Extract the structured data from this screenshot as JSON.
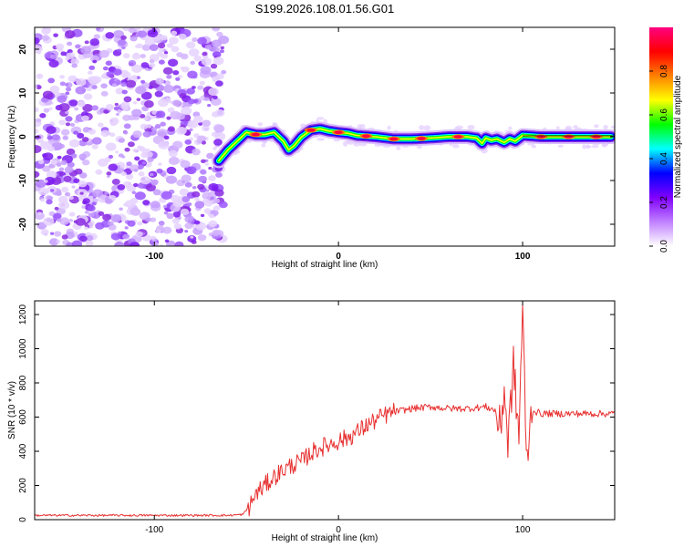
{
  "title": "S199.2026.108.01.56.G01",
  "chart_data": [
    {
      "type": "heatmap",
      "xlabel": "Height of straight line (km)",
      "ylabel": "Frequency (Hz)",
      "xlim": [
        -165,
        150
      ],
      "ylim": [
        -25,
        25
      ],
      "xticks": [
        -100,
        0,
        100
      ],
      "yticks": [
        -20,
        -10,
        0,
        10,
        20
      ],
      "colorbar": {
        "label": "Normalized spectral amplitude",
        "range": [
          0,
          1
        ],
        "ticks": [
          0.0,
          0.2,
          0.4,
          0.6,
          0.8
        ],
        "colormap": [
          "#ffffff",
          "#c080ff",
          "#8000ff",
          "#0000ff",
          "#00ffff",
          "#00ff00",
          "#ffff00",
          "#ff8000",
          "#ff0000",
          "#ff0080"
        ]
      },
      "noise_region_x": [
        -165,
        -62
      ],
      "ridge": {
        "x": [
          -65,
          -60,
          -55,
          -50,
          -45,
          -40,
          -35,
          -30,
          -27,
          -24,
          -20,
          -15,
          -10,
          -5,
          0,
          5,
          10,
          20,
          30,
          40,
          50,
          60,
          70,
          75,
          78,
          80,
          83,
          86,
          90,
          93,
          96,
          100,
          110,
          120,
          130,
          140,
          148
        ],
        "freq": [
          -5.5,
          -3,
          -1,
          1,
          0.5,
          0.5,
          1,
          -1,
          -3,
          -2,
          0,
          1.5,
          1.8,
          1.3,
          1.0,
          0.8,
          0.3,
          0,
          -0.5,
          -0.5,
          -0.3,
          0,
          0,
          -0.3,
          -1.5,
          -0.3,
          -0.8,
          -0.5,
          -1.3,
          -0.5,
          -1,
          0.3,
          0,
          0,
          0,
          0,
          0
        ]
      },
      "hot_spots_x": [
        -45,
        -15,
        0,
        15,
        30,
        45,
        65,
        110,
        125,
        140
      ]
    },
    {
      "type": "line",
      "xlabel": "Height of straight line (km)",
      "ylabel": "SNR (10 * v/v)",
      "xlim": [
        -165,
        150
      ],
      "ylim": [
        0,
        1280
      ],
      "xticks": [
        -100,
        0,
        100
      ],
      "yticks": [
        0,
        200,
        400,
        600,
        800,
        1000,
        1200
      ],
      "color": "#e83030",
      "series": [
        {
          "name": "SNR",
          "x": [
            -165,
            -140,
            -120,
            -100,
            -80,
            -60,
            -52,
            -48,
            -45,
            -40,
            -35,
            -30,
            -25,
            -20,
            -15,
            -10,
            -5,
            0,
            5,
            10,
            15,
            20,
            25,
            30,
            40,
            50,
            60,
            70,
            80,
            85,
            88,
            90,
            92,
            95,
            98,
            100,
            102,
            105,
            110,
            120,
            130,
            140,
            150
          ],
          "y": [
            25,
            25,
            25,
            25,
            25,
            25,
            30,
            80,
            150,
            200,
            250,
            290,
            320,
            340,
            390,
            420,
            440,
            460,
            480,
            510,
            550,
            580,
            610,
            630,
            650,
            660,
            650,
            650,
            660,
            640,
            520,
            780,
            440,
            900,
            480,
            1260,
            330,
            640,
            620,
            620,
            620,
            620,
            620
          ]
        }
      ],
      "noise_amplitude": [
        {
          "x": [
            -165,
            -50
          ],
          "amp": 12
        },
        {
          "x": [
            -50,
            30
          ],
          "amp": 110
        },
        {
          "x": [
            30,
            85
          ],
          "amp": 40
        },
        {
          "x": [
            85,
            105
          ],
          "amp": 260
        },
        {
          "x": [
            105,
            150
          ],
          "amp": 40
        }
      ]
    }
  ]
}
